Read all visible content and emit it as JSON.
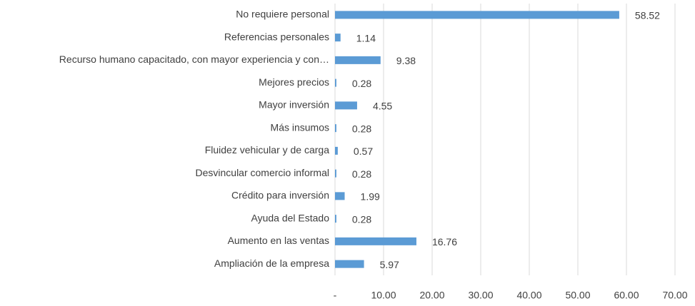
{
  "chart_data": {
    "type": "bar",
    "orientation": "horizontal",
    "categories": [
      "No requiere personal",
      "Referencias personales",
      "Recurso humano capacitado, con mayor experiencia y con…",
      "Mejores precios",
      "Mayor inversión",
      "Más insumos",
      "Fluidez vehicular y de carga",
      "Desvincular comercio informal",
      "Crédito para inversión",
      "Ayuda del Estado",
      "Aumento en las ventas",
      "Ampliación de la empresa"
    ],
    "values": [
      58.52,
      1.14,
      9.38,
      0.28,
      4.55,
      0.28,
      0.57,
      0.28,
      1.99,
      0.28,
      16.76,
      5.97
    ],
    "color": "#5b9bd5",
    "xlim": [
      0,
      70
    ],
    "xticks": [
      {
        "value": 0,
        "label": "-"
      },
      {
        "value": 10,
        "label": "10.00"
      },
      {
        "value": 20,
        "label": "20.00"
      },
      {
        "value": 30,
        "label": "30.00"
      },
      {
        "value": 40,
        "label": "40.00"
      },
      {
        "value": 50,
        "label": "50.00"
      },
      {
        "value": 60,
        "label": "60.00"
      },
      {
        "value": 70,
        "label": "70.00"
      }
    ],
    "grid": true
  }
}
